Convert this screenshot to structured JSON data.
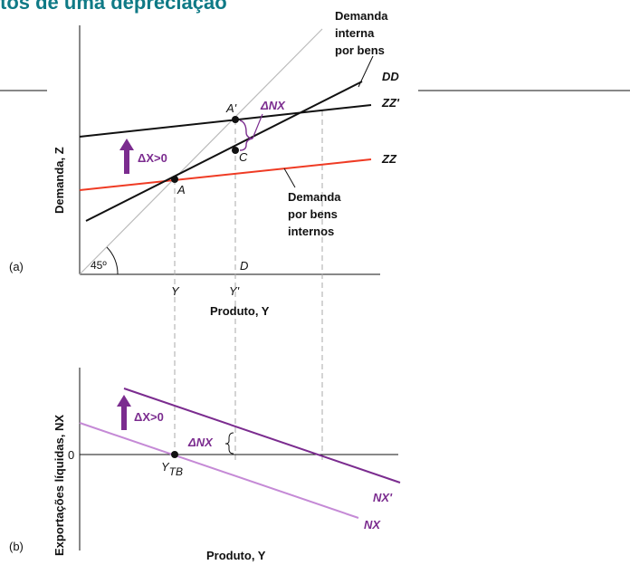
{
  "title": "tos de uma depreciação",
  "panel_a": {
    "panel_label": "(a)",
    "y_axis_label": "Demanda, Z",
    "x_axis_label": "Produto, Y",
    "angle_label": "45º",
    "lines": {
      "dd": "DD",
      "zz_prime": "ZZ'",
      "zz": "ZZ"
    },
    "annotations": {
      "domestic_demand_1": "Demanda",
      "domestic_demand_2": "interna",
      "domestic_demand_3": "por bens",
      "goods_demand_1": "Demanda",
      "goods_demand_2": "por bens",
      "goods_demand_3": "internos",
      "delta_x": "ΔX>0",
      "delta_nx": "ΔNX"
    },
    "points": {
      "a": "A",
      "a_prime": "A'",
      "c": "C",
      "d": "D"
    },
    "ticks": {
      "y": "Y",
      "y_prime": "Y'"
    }
  },
  "panel_b": {
    "panel_label": "(b)",
    "y_axis_label": "Exportações líquidas, NX",
    "x_axis_label": "Produto, Y",
    "zero_label": "0",
    "lines": {
      "nx_prime": "NX'",
      "nx": "NX"
    },
    "annotations": {
      "delta_x": "ΔX>0",
      "delta_nx": "ΔNX"
    },
    "ticks": {
      "y_tb_main": "Y",
      "y_tb_sub": "TB"
    }
  },
  "colors": {
    "black_line": "#111111",
    "red_line": "#ef3b24",
    "purple_dark": "#7b2c8f",
    "purple_light": "#c58ad6",
    "guide": "#aaaaaa",
    "title": "#0f7a86"
  }
}
